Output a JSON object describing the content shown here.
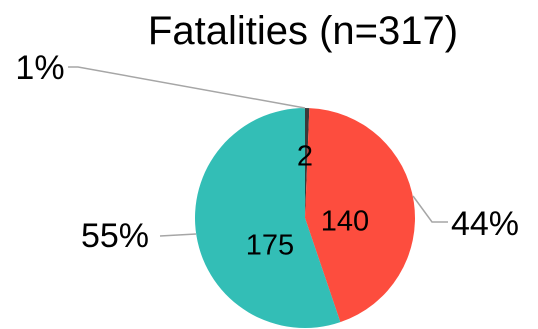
{
  "chart_data": {
    "type": "pie",
    "title": "Fatalities (n=317)",
    "slices": [
      {
        "value": 2,
        "value_label": "2",
        "percent_label": "1%",
        "color": "#3a3a3a"
      },
      {
        "value": 140,
        "value_label": "140",
        "percent_label": "44%",
        "color": "#fd4d3e"
      },
      {
        "value": 175,
        "value_label": "175",
        "percent_label": "55%",
        "color": "#33beb6"
      }
    ],
    "start_angle_deg": 0,
    "direction": "clockwise",
    "legend": "none"
  }
}
